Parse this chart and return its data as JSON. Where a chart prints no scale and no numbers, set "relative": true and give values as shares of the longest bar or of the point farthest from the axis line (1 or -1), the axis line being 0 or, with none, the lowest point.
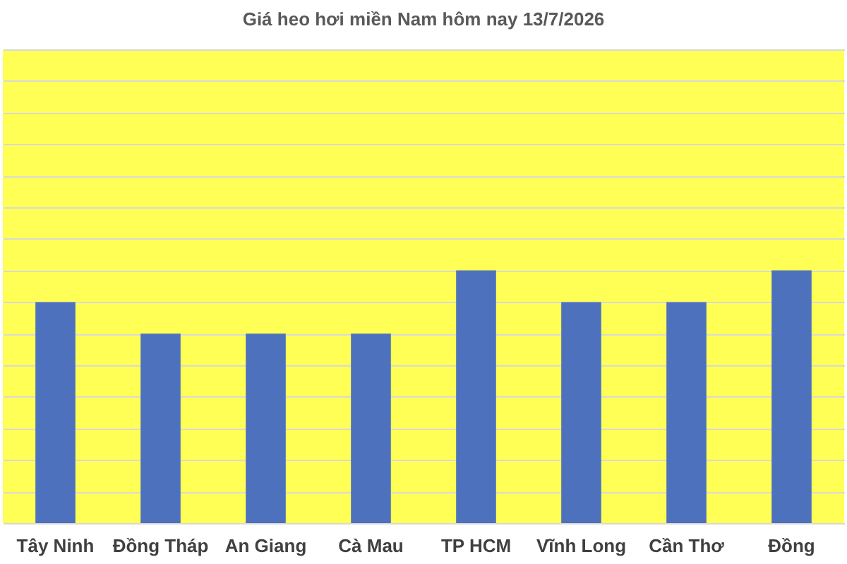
{
  "chart_data": {
    "type": "bar",
    "title": "Giá heo hơi miền Nam hôm nay 13/7/2026",
    "categories": [
      "Tây Ninh",
      "Đồng Tháp",
      "An Giang",
      "Cà Mau",
      "TP HCM",
      "Vĩnh Long",
      "Cần Thơ",
      "Đồng"
    ],
    "relative": true,
    "series": [
      {
        "color": "#4e71be",
        "values": [
          0.875,
          0.75,
          0.75,
          0.75,
          1,
          0.875,
          0.875,
          1
        ]
      }
    ],
    "grid": "y",
    "legend": false
  }
}
